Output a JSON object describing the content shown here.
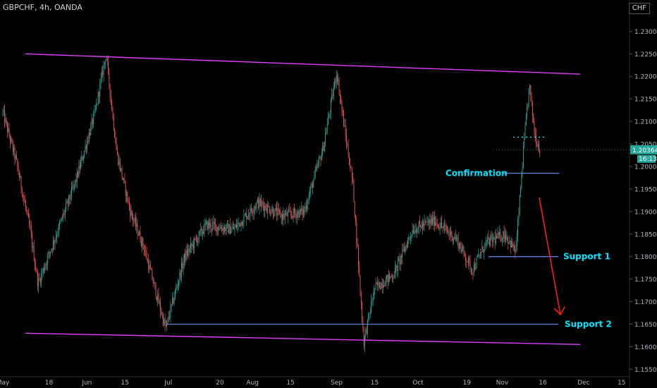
{
  "header": {
    "symbol": "GBPCHF, 4h, OANDA",
    "currency": "CHF"
  },
  "colors": {
    "background": "#000000",
    "axis_text": "#b2b5be",
    "candle_up": "#26a69a",
    "candle_down": "#ef5350",
    "channel": "#e040fb",
    "support": "#5b8ff9",
    "annotation_text": "#00e5ff",
    "arrow": "#ff1a1a",
    "price_badge": "#26a69a",
    "dotted_level": "#00e5ff"
  },
  "chart_data": {
    "type": "candlestick",
    "title": "GBPCHF, 4h, OANDA",
    "x_ticks": [
      "May",
      "18",
      "Jun",
      "15",
      "Jul",
      "20",
      "Aug",
      "15",
      "Sep",
      "15",
      "Oct",
      "19",
      "Nov",
      "16",
      "Dec",
      "15"
    ],
    "y_ticks": [
      "1.23000",
      "1.22500",
      "1.22000",
      "1.21500",
      "1.21000",
      "1.20500",
      "1.20000",
      "1.19500",
      "1.19000",
      "1.18500",
      "1.18000",
      "1.17500",
      "1.17000",
      "1.16500",
      "1.16000",
      "1.15500"
    ],
    "ylim": [
      1.1535,
      1.2335
    ],
    "last_price": "1.20364",
    "countdown": "16:13",
    "price_path": [
      {
        "x": "May 1",
        "y": 1.212
      },
      {
        "x": "May 6",
        "y": 1.201
      },
      {
        "x": "May 11",
        "y": 1.186
      },
      {
        "x": "May 14",
        "y": 1.174
      },
      {
        "x": "May 22",
        "y": 1.187
      },
      {
        "x": "May 28",
        "y": 1.197
      },
      {
        "x": "Jun 4",
        "y": 1.212
      },
      {
        "x": "Jun 8",
        "y": 1.225
      },
      {
        "x": "Jun 12",
        "y": 1.203
      },
      {
        "x": "Jun 17",
        "y": 1.19
      },
      {
        "x": "Jun 22",
        "y": 1.182
      },
      {
        "x": "Jun 30",
        "y": 1.164
      },
      {
        "x": "Jul 7",
        "y": 1.18
      },
      {
        "x": "Jul 15",
        "y": 1.187
      },
      {
        "x": "Jul 25",
        "y": 1.186
      },
      {
        "x": "Aug 3",
        "y": 1.192
      },
      {
        "x": "Aug 12",
        "y": 1.189
      },
      {
        "x": "Aug 20",
        "y": 1.19
      },
      {
        "x": "Aug 27",
        "y": 1.204
      },
      {
        "x": "Sep 1",
        "y": 1.221
      },
      {
        "x": "Sep 4",
        "y": 1.208
      },
      {
        "x": "Sep 7",
        "y": 1.196
      },
      {
        "x": "Sep 11",
        "y": 1.161
      },
      {
        "x": "Sep 15",
        "y": 1.173
      },
      {
        "x": "Sep 22",
        "y": 1.176
      },
      {
        "x": "Sep 29",
        "y": 1.186
      },
      {
        "x": "Oct 7",
        "y": 1.188
      },
      {
        "x": "Oct 15",
        "y": 1.184
      },
      {
        "x": "Oct 21",
        "y": 1.177
      },
      {
        "x": "Oct 26",
        "y": 1.183
      },
      {
        "x": "Nov 2",
        "y": 1.185
      },
      {
        "x": "Nov 6",
        "y": 1.181
      },
      {
        "x": "Nov 9",
        "y": 1.205
      },
      {
        "x": "Nov 11",
        "y": 1.218
      },
      {
        "x": "Nov 13",
        "y": 1.207
      },
      {
        "x": "Nov 15",
        "y": 1.2036
      }
    ],
    "annotations": {
      "channel_upper": {
        "from": {
          "x": "May 1",
          "y": 1.225
        },
        "to": {
          "x": "Dec 2",
          "y": 1.2205
        }
      },
      "channel_lower": {
        "from": {
          "x": "May 1",
          "y": 1.163
        },
        "to": {
          "x": "Dec 2",
          "y": 1.1605
        }
      },
      "confirmation": {
        "label": "Confirmation",
        "y": 1.1985
      },
      "support_1": {
        "label": "Support 1",
        "y": 1.18
      },
      "support_2": {
        "label": "Support 2",
        "y": 1.165
      },
      "dotted_level": {
        "y": 1.2065
      },
      "arrow": {
        "from": {
          "x": "Nov 21",
          "y": 1.193
        },
        "to": {
          "x": "Nov 27",
          "y": 1.166
        }
      }
    }
  }
}
